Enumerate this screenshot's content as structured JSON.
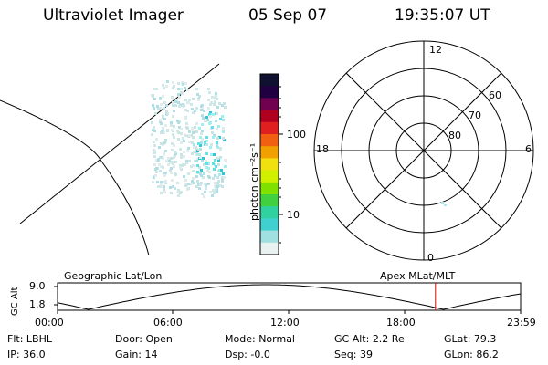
{
  "header": {
    "instrument": "Ultraviolet Imager",
    "date": "05 Sep 07",
    "time": "19:35:07 UT"
  },
  "colorbar": {
    "unit_label": "photon cm⁻²s⁻¹",
    "ticks": [
      "100",
      "10"
    ],
    "colors": [
      "#101030",
      "#200040",
      "#700050",
      "#b00020",
      "#e02020",
      "#f06010",
      "#f0a000",
      "#f0e010",
      "#d0f000",
      "#80e000",
      "#40d040",
      "#30d0a0",
      "#40d0d0",
      "#a0e0e0",
      "#e8f0f0"
    ]
  },
  "polar_plot": {
    "mlt_labels": {
      "top": "12",
      "left": "18",
      "right": "6",
      "bottom": "0"
    },
    "lat_labels": [
      "60",
      "70",
      "80"
    ]
  },
  "strip_chart": {
    "left_title": "Geographic Lat/Lon",
    "right_title": "Apex MLat/MLT",
    "axis_label": "GC Alt",
    "y_ticks": [
      "9.0",
      "1.8"
    ],
    "x_ticks": [
      "00:00",
      "06:00",
      "12:00",
      "18:00",
      "23:59"
    ],
    "marker_time_hours": 19.59,
    "marker_color": "#e00000"
  },
  "status": {
    "row1": [
      {
        "label": "Flt:",
        "value": "LBHL"
      },
      {
        "label": "Door:",
        "value": "Open"
      },
      {
        "label": "Mode:",
        "value": "Normal"
      },
      {
        "label": "GC Alt:",
        "value": "2.2 Re"
      },
      {
        "label": "GLat:",
        "value": "79.3"
      }
    ],
    "row2": [
      {
        "label": "IP:",
        "value": "36.0"
      },
      {
        "label": "Gain:",
        "value": "14"
      },
      {
        "label": "Dsp:",
        "value": "-0.0"
      },
      {
        "label": "Seq:",
        "value": "39"
      },
      {
        "label": "GLon:",
        "value": "86.2"
      }
    ]
  }
}
